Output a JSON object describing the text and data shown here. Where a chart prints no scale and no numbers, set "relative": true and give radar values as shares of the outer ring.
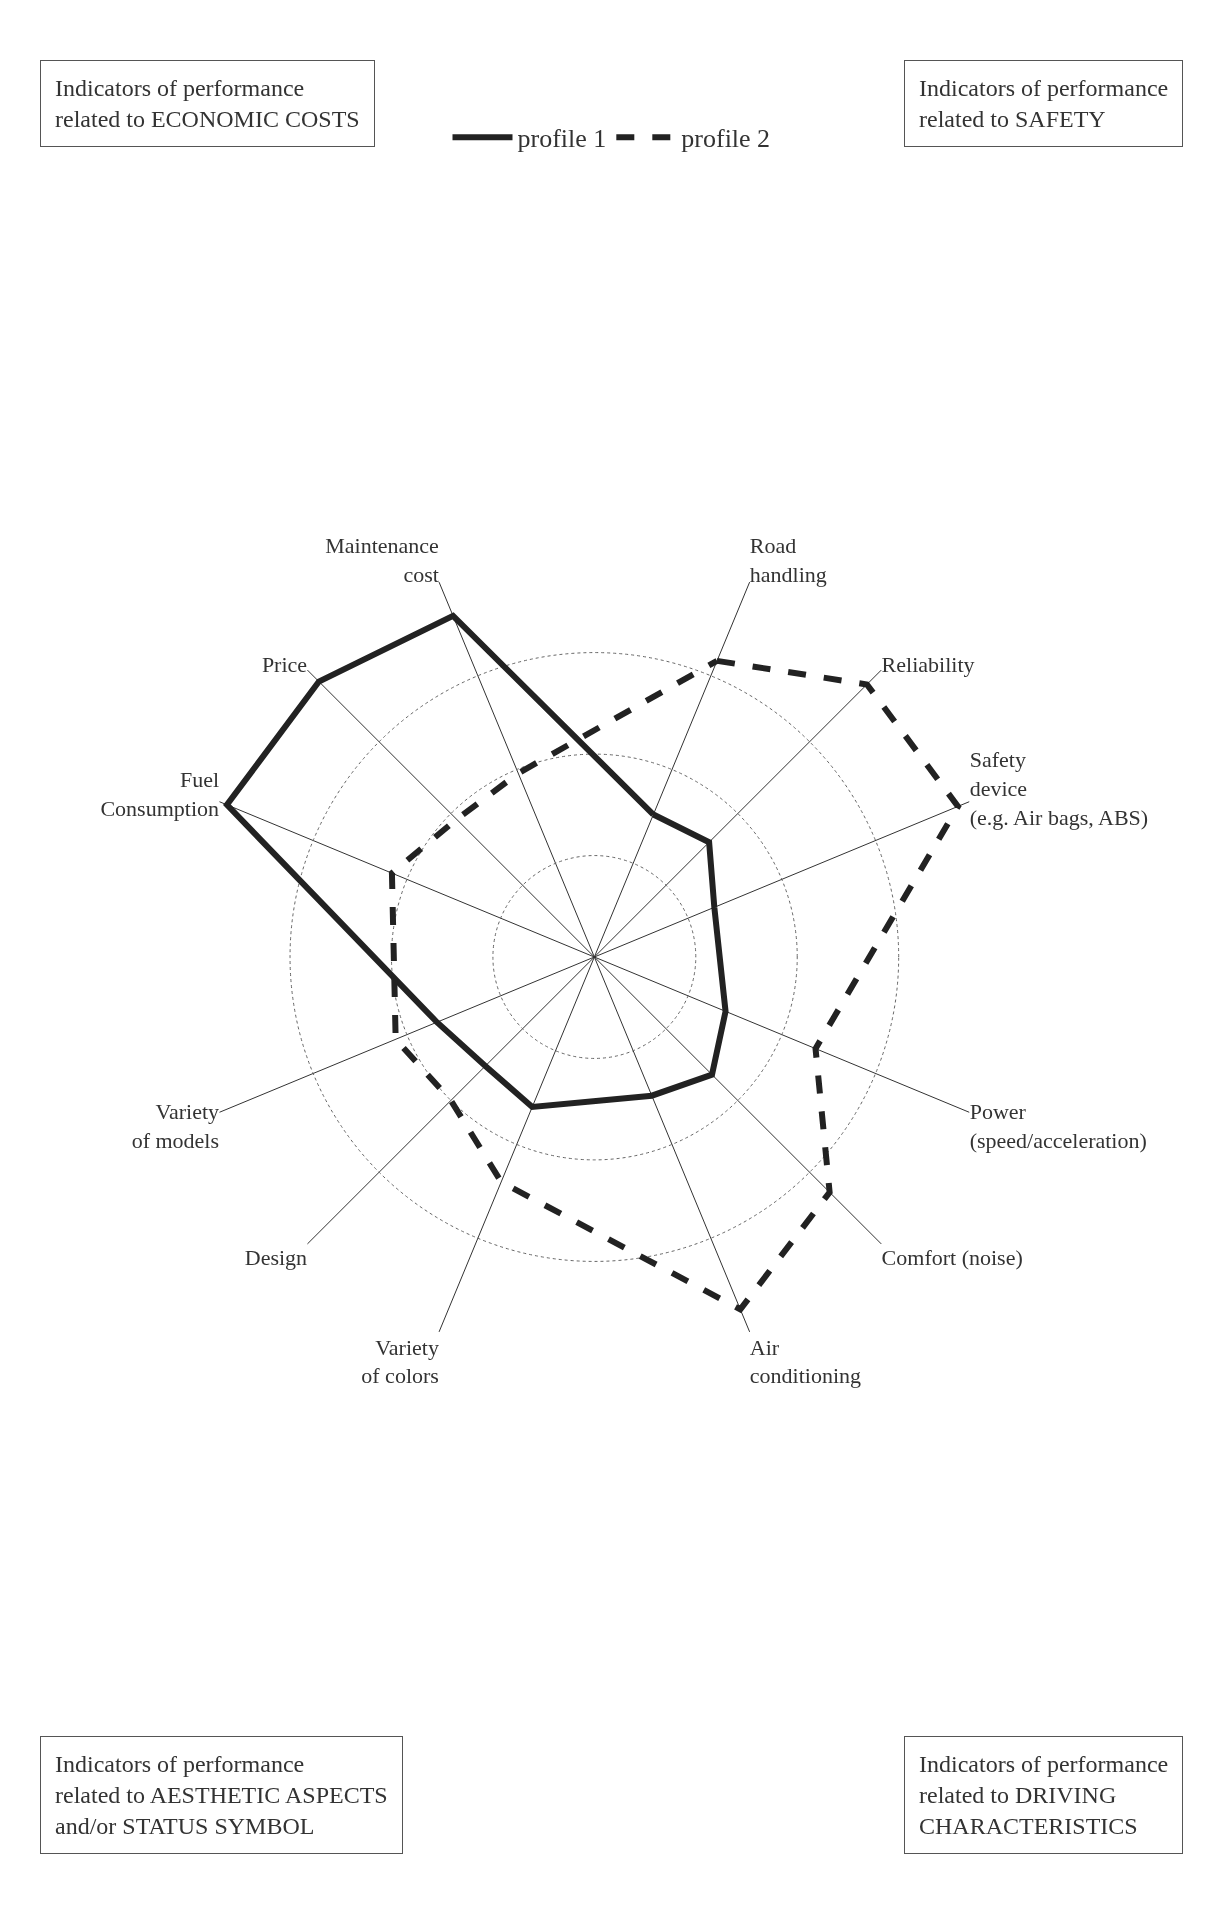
{
  "chart_data": {
    "type": "radar",
    "relative": true,
    "categories": [
      "Road\nhandling",
      "Reliability",
      "Safety\ndevice\n(e.g. Air bags, ABS)",
      "Power\n(speed/acceleration)",
      "Comfort (noise)",
      "Air\nconditioning",
      "Variety\nof colors",
      "Design",
      "Variety\nof models",
      "Fuel\nConsumption",
      "Price",
      "Maintenance\ncost"
    ],
    "series": [
      {
        "name": "profile 1",
        "color": "#222222",
        "line_style": "solid",
        "values": [
          0.38,
          0.4,
          0.32,
          0.35,
          0.41,
          0.37,
          0.4,
          0.38,
          0.42,
          0.98,
          0.96,
          0.91
        ]
      },
      {
        "name": "profile 2",
        "color": "#222222",
        "line_style": "dashed",
        "values": [
          0.79,
          0.95,
          0.97,
          0.59,
          0.82,
          0.94,
          0.6,
          0.5,
          0.53,
          0.54,
          0.48,
          0.49
        ]
      }
    ],
    "annotations": [
      "Indicators of performance\nrelated to ECONOMIC COSTS",
      "Indicators of performance\nrelated to SAFETY",
      "Indicators of performance\nrelated to AESTHETIC ASPECTS\nand/or STATUS SYMBOL",
      "Indicators of performance\nrelated to DRIVING\nCHARACTERISTICS"
    ],
    "legend": "top",
    "grid": true,
    "marker": "none"
  }
}
